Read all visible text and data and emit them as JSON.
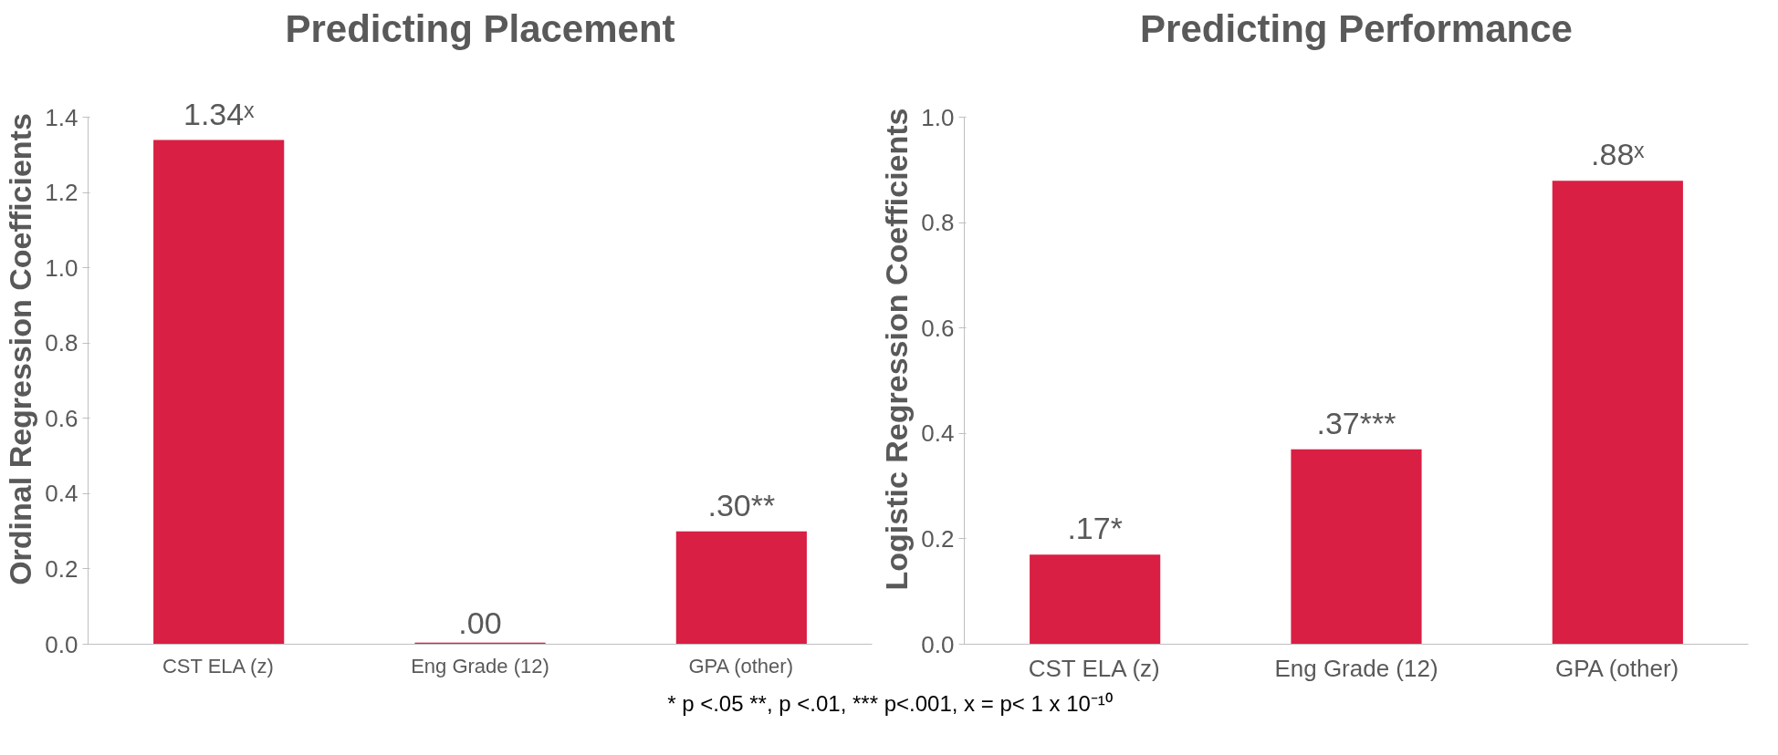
{
  "chart_data": [
    {
      "type": "bar",
      "title": "Predicting Placement",
      "ylabel": "Ordinal Regression Coefficients",
      "categories": [
        "CST ELA (z)",
        "Eng Grade (12)",
        "GPA (other)"
      ],
      "values": [
        1.34,
        0.004,
        0.3
      ],
      "value_labels": [
        "1.34ˣ",
        ".00",
        ".30**"
      ],
      "color": "#d91f43",
      "ylim": [
        0,
        1.4
      ],
      "yticks": [
        {
          "value": 0,
          "label": "0.0"
        },
        {
          "value": 0.2,
          "label": "0.2"
        },
        {
          "value": 0.4,
          "label": "0.4"
        },
        {
          "value": 0.6,
          "label": "0.6"
        },
        {
          "value": 0.8,
          "label": "0.8"
        },
        {
          "value": 1.0,
          "label": "1.0"
        },
        {
          "value": 1.2,
          "label": "1.2"
        },
        {
          "value": 1.4,
          "label": "1.4"
        }
      ],
      "grid": false
    },
    {
      "type": "bar",
      "title": "Predicting Performance",
      "ylabel": "Logistic Regression Coefficients",
      "categories": [
        "CST ELA (z)",
        "Eng Grade (12)",
        "GPA (other)"
      ],
      "values": [
        0.17,
        0.37,
        0.88
      ],
      "value_labels": [
        ".17*",
        ".37***",
        ".88ˣ"
      ],
      "color": "#d91f43",
      "ylim": [
        0,
        1.0
      ],
      "yticks": [
        {
          "value": 0,
          "label": "0.0"
        },
        {
          "value": 0.2,
          "label": "0.2"
        },
        {
          "value": 0.4,
          "label": "0.4"
        },
        {
          "value": 0.6,
          "label": "0.6"
        },
        {
          "value": 0.8,
          "label": "0.8"
        },
        {
          "value": 1.0,
          "label": "1.0"
        }
      ],
      "grid": false,
      "annotations": [
        "* p <.05 **, p <.01, *** p<.001, x = p< 1 x 10⁻¹⁰"
      ]
    }
  ]
}
